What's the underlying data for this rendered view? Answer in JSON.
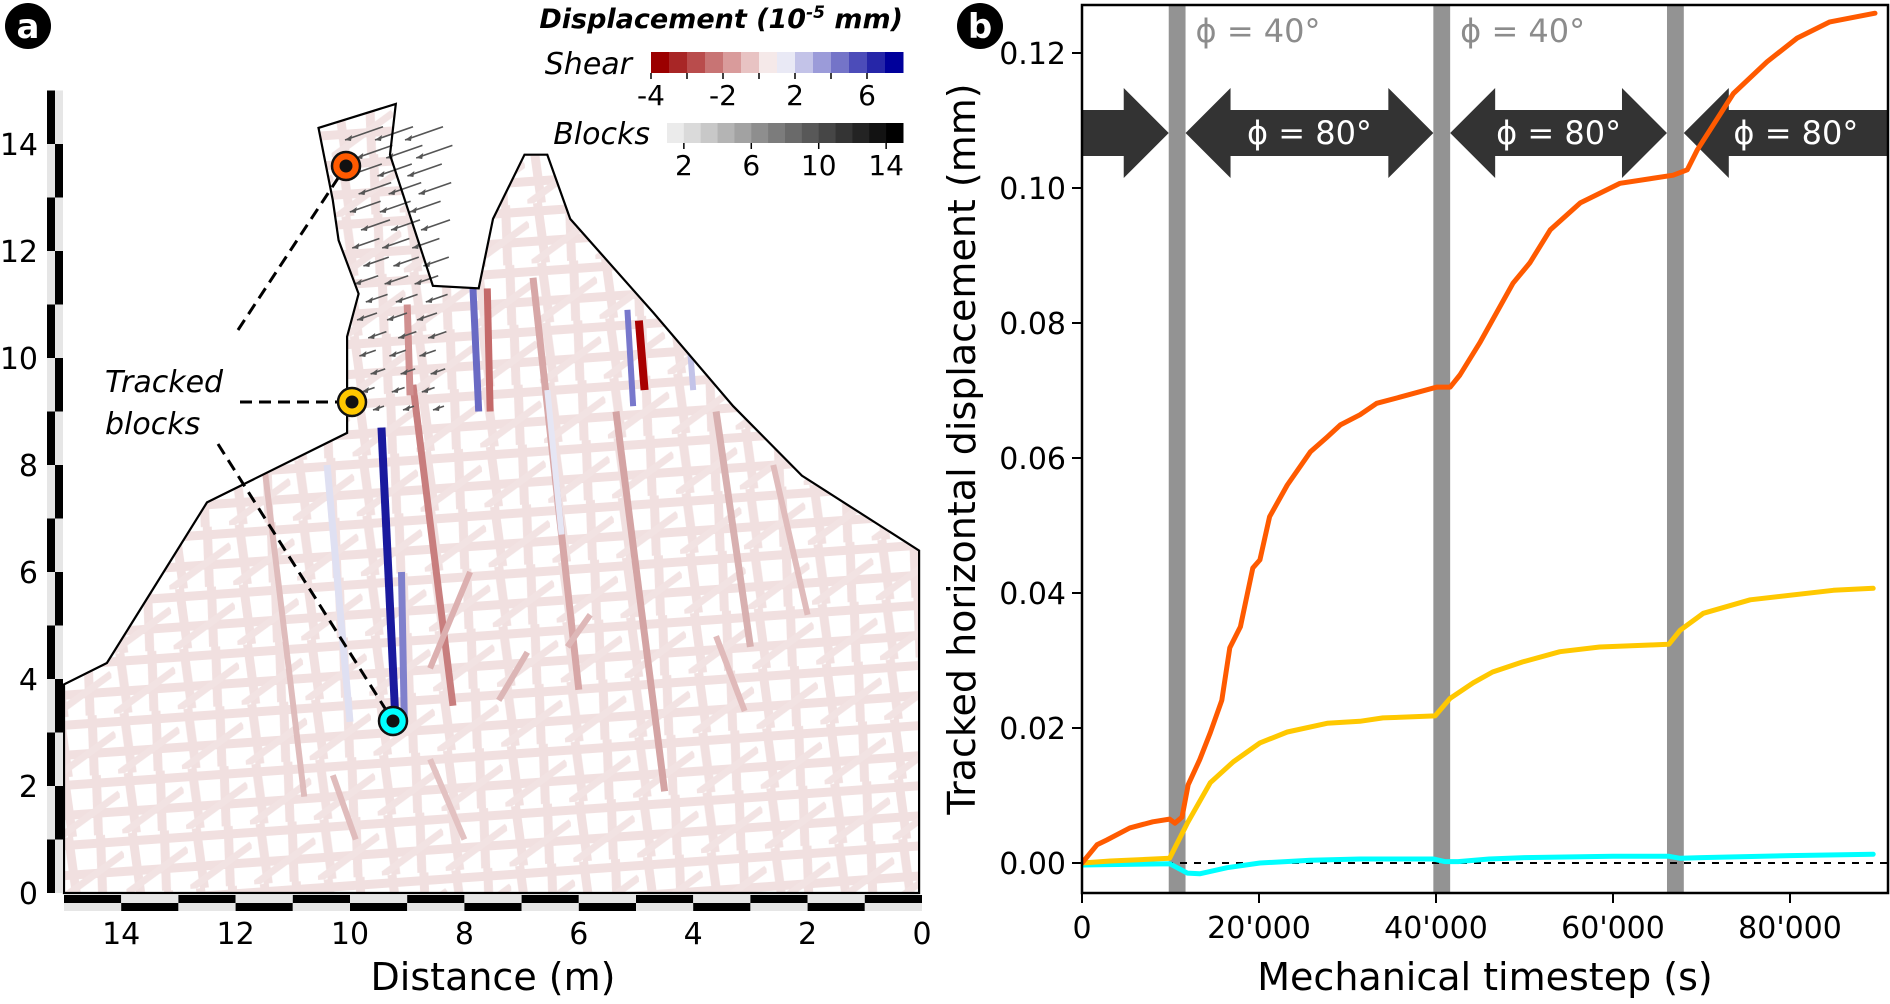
{
  "chart_data": [
    {
      "panel": "a",
      "type": "diagram",
      "panel_label": "a",
      "xlabel": "Distance (m)",
      "xlim": [
        15,
        0
      ],
      "xticks": [
        14,
        12,
        10,
        8,
        6,
        4,
        2,
        0
      ],
      "ylim": [
        0,
        15
      ],
      "yticks": [
        0,
        2,
        4,
        6,
        8,
        10,
        12,
        14
      ],
      "legend": {
        "title": "Displacement (10",
        "title_exp": "-5",
        "title_end": " mm)",
        "shear_label": "Shear",
        "shear_ticks": [
          "-4",
          "-2",
          "2",
          "6"
        ],
        "shear_colors": [
          "#9b0000",
          "#a82626",
          "#b94c4c",
          "#c87474",
          "#d99b9b",
          "#e8c3c3",
          "#f5e9e9",
          "#e9e9f5",
          "#c3c3e8",
          "#9b9bd9",
          "#7474c8",
          "#4c4cb9",
          "#2626a8",
          "#00009b"
        ],
        "blocks_label": "Blocks",
        "blocks_ticks": [
          "2",
          "6",
          "10",
          "14"
        ],
        "blocks_colors": [
          "#ebebeb",
          "#dadada",
          "#c8c8c8",
          "#b4b4b4",
          "#a2a2a2",
          "#8e8e8e",
          "#7c7c7c",
          "#6a6a6a",
          "#585858",
          "#464646",
          "#343434",
          "#232323",
          "#121212",
          "#000000"
        ]
      },
      "profile_m": [
        [
          15,
          0
        ],
        [
          15,
          3.9
        ],
        [
          14.25,
          4.3
        ],
        [
          12.5,
          7.3
        ],
        [
          10.05,
          8.6
        ],
        [
          10.05,
          10.4
        ],
        [
          9.85,
          11.2
        ],
        [
          10.2,
          12.2
        ],
        [
          10.3,
          12.95
        ],
        [
          10.55,
          14.3
        ],
        [
          9.2,
          14.75
        ],
        [
          9.3,
          13.8
        ],
        [
          8.55,
          11.35
        ],
        [
          7.75,
          11.3
        ],
        [
          7.5,
          12.6
        ],
        [
          6.95,
          13.8
        ],
        [
          6.55,
          13.8
        ],
        [
          6.15,
          12.6
        ],
        [
          4.7,
          10.85
        ],
        [
          3.3,
          9.1
        ],
        [
          2.1,
          7.8
        ],
        [
          0.05,
          6.4
        ],
        [
          0.05,
          0
        ]
      ],
      "tracked_blocks": [
        {
          "name": "orange",
          "color": "#ff5a00",
          "x_m": 9.9,
          "y_m": 13.6
        },
        {
          "name": "yellow",
          "color": "#ffc800",
          "x_m": 9.8,
          "y_m": 9.2
        },
        {
          "name": "cyan",
          "color": "#00ffff",
          "x_m": 9.1,
          "y_m": 3.2
        }
      ],
      "annotation": [
        "Tracked",
        "blocks"
      ]
    },
    {
      "panel": "b",
      "type": "line",
      "panel_label": "b",
      "xlabel": "Mechanical timestep (s)",
      "ylabel": "Tracked horizontal displacement (mm)",
      "xlim": [
        0,
        90000
      ],
      "ylim": [
        -0.0045,
        0.127
      ],
      "xticks": [
        0,
        20000,
        40000,
        60000,
        80000
      ],
      "xtick_labels": [
        "0",
        "20'000",
        "40'000",
        "60'000",
        "80'000"
      ],
      "yticks": [
        0.0,
        0.02,
        0.04,
        0.06,
        0.08,
        0.1,
        0.12
      ],
      "ytick_labels": [
        "0.00",
        "0.02",
        "0.04",
        "0.06",
        "0.08",
        "0.10",
        "0.12"
      ],
      "zero_line": "dashed",
      "bands": [
        [
          9800,
          11700
        ],
        [
          39700,
          41600
        ],
        [
          66100,
          68000
        ]
      ],
      "band_labels": [
        "ϕ = 40°",
        "ϕ = 40°"
      ],
      "arrow_labels": [
        "ϕ = 80°",
        "ϕ = 80°",
        "ϕ = 80°"
      ],
      "series": [
        {
          "name": "orange",
          "color": "#ff5a00",
          "x": [
            0,
            1700,
            2800,
            5400,
            8000,
            9900,
            10500,
            11300,
            12000,
            13300,
            14500,
            15800,
            16700,
            17900,
            19300,
            20100,
            21200,
            23200,
            25800,
            27700,
            29200,
            31400,
            33300,
            35900,
            40100,
            41600,
            42700,
            45000,
            48700,
            50600,
            52900,
            56300,
            60800,
            66800,
            68400,
            69500,
            73600,
            77400,
            80800,
            84500,
            89600
          ],
          "y": [
            0,
            0.0027,
            0.0034,
            0.0052,
            0.0061,
            0.0065,
            0.0059,
            0.0068,
            0.0116,
            0.0153,
            0.0193,
            0.0241,
            0.0319,
            0.035,
            0.0437,
            0.0449,
            0.0513,
            0.056,
            0.0609,
            0.0631,
            0.0649,
            0.0664,
            0.0681,
            0.069,
            0.0705,
            0.0705,
            0.0723,
            0.0772,
            0.0859,
            0.0889,
            0.0938,
            0.0978,
            0.1007,
            0.1019,
            0.1027,
            0.1056,
            0.114,
            0.1187,
            0.1222,
            0.1246,
            0.1259
          ]
        },
        {
          "name": "yellow",
          "color": "#ffc800",
          "x": [
            0,
            3200,
            9900,
            11900,
            14500,
            17100,
            20100,
            23200,
            27700,
            31400,
            34000,
            39900,
            41600,
            44200,
            46400,
            49800,
            54000,
            58500,
            64200,
            66300,
            67600,
            70200,
            75500,
            84900,
            89400
          ],
          "y": [
            0,
            0.0003,
            0.0007,
            0.0059,
            0.0119,
            0.015,
            0.0178,
            0.0194,
            0.0207,
            0.021,
            0.0215,
            0.0218,
            0.0244,
            0.0267,
            0.0283,
            0.0298,
            0.0313,
            0.032,
            0.0323,
            0.0324,
            0.0345,
            0.037,
            0.039,
            0.0404,
            0.0407
          ]
        },
        {
          "name": "cyan",
          "color": "#00ffff",
          "x": [
            0,
            9900,
            11900,
            13300,
            16400,
            20100,
            25800,
            31400,
            39700,
            41000,
            42500,
            46000,
            50000,
            60000,
            66300,
            67600,
            70000,
            80000,
            89400
          ],
          "y": [
            -0.0003,
            -0.0001,
            -0.0015,
            -0.0016,
            -0.0007,
            0.0,
            0.0004,
            0.0006,
            0.0006,
            0.0002,
            0.0002,
            0.0006,
            0.0008,
            0.001,
            0.001,
            0.0007,
            0.0008,
            0.0011,
            0.0013
          ]
        }
      ]
    }
  ]
}
